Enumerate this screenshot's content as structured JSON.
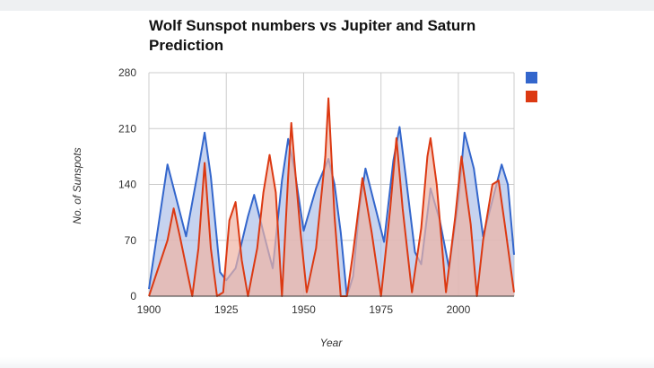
{
  "chart_data": {
    "type": "area",
    "title": "Wolf Sunspot numbers vs Jupiter and Saturn Prediction",
    "xlabel": "Year",
    "ylabel": "No. of Sunspots",
    "xlim": [
      1900,
      2018
    ],
    "ylim": [
      0,
      280
    ],
    "x_ticks": [
      1900,
      1925,
      1950,
      1975,
      2000
    ],
    "y_ticks": [
      0,
      70,
      140,
      210,
      280
    ],
    "grid": true,
    "legend_position": "right",
    "series": [
      {
        "color": "#3366cc",
        "fill": "#aec1e8",
        "points": [
          [
            1900,
            9
          ],
          [
            1906,
            165
          ],
          [
            1912,
            75
          ],
          [
            1916,
            160
          ],
          [
            1918,
            205
          ],
          [
            1920,
            150
          ],
          [
            1923,
            30
          ],
          [
            1925,
            20
          ],
          [
            1928,
            35
          ],
          [
            1932,
            100
          ],
          [
            1934,
            127
          ],
          [
            1937,
            80
          ],
          [
            1940,
            35
          ],
          [
            1943,
            145
          ],
          [
            1945,
            197
          ],
          [
            1947,
            160
          ],
          [
            1950,
            82
          ],
          [
            1954,
            135
          ],
          [
            1958,
            172
          ],
          [
            1960,
            140
          ],
          [
            1962,
            80
          ],
          [
            1964,
            0
          ],
          [
            1966,
            25
          ],
          [
            1968,
            110
          ],
          [
            1970,
            160
          ],
          [
            1976,
            68
          ],
          [
            1979,
            170
          ],
          [
            1981,
            212
          ],
          [
            1983,
            150
          ],
          [
            1986,
            55
          ],
          [
            1988,
            40
          ],
          [
            1991,
            135
          ],
          [
            1994,
            95
          ],
          [
            1997,
            35
          ],
          [
            2000,
            120
          ],
          [
            2002,
            205
          ],
          [
            2005,
            160
          ],
          [
            2008,
            75
          ],
          [
            2011,
            120
          ],
          [
            2014,
            165
          ],
          [
            2016,
            140
          ],
          [
            2018,
            52
          ]
        ]
      },
      {
        "color": "#dc3912",
        "fill": "#efb3a4",
        "points": [
          [
            1900,
            0
          ],
          [
            1906,
            70
          ],
          [
            1908,
            110
          ],
          [
            1910,
            75
          ],
          [
            1914,
            0
          ],
          [
            1916,
            60
          ],
          [
            1918,
            167
          ],
          [
            1920,
            60
          ],
          [
            1922,
            0
          ],
          [
            1924,
            5
          ],
          [
            1926,
            95
          ],
          [
            1928,
            118
          ],
          [
            1930,
            45
          ],
          [
            1932,
            0
          ],
          [
            1935,
            60
          ],
          [
            1937,
            130
          ],
          [
            1939,
            177
          ],
          [
            1941,
            130
          ],
          [
            1943,
            0
          ],
          [
            1945,
            150
          ],
          [
            1946,
            217
          ],
          [
            1947,
            170
          ],
          [
            1949,
            80
          ],
          [
            1951,
            5
          ],
          [
            1954,
            60
          ],
          [
            1957,
            175
          ],
          [
            1958,
            248
          ],
          [
            1960,
            100
          ],
          [
            1962,
            0
          ],
          [
            1964,
            0
          ],
          [
            1966,
            55
          ],
          [
            1969,
            148
          ],
          [
            1972,
            80
          ],
          [
            1975,
            0
          ],
          [
            1978,
            110
          ],
          [
            1980,
            198
          ],
          [
            1982,
            110
          ],
          [
            1985,
            5
          ],
          [
            1988,
            85
          ],
          [
            1990,
            175
          ],
          [
            1991,
            198
          ],
          [
            1993,
            140
          ],
          [
            1996,
            5
          ],
          [
            1999,
            100
          ],
          [
            2001,
            175
          ],
          [
            2004,
            90
          ],
          [
            2006,
            0
          ],
          [
            2008,
            70
          ],
          [
            2011,
            140
          ],
          [
            2013,
            145
          ],
          [
            2015,
            90
          ],
          [
            2018,
            5
          ]
        ]
      }
    ]
  }
}
